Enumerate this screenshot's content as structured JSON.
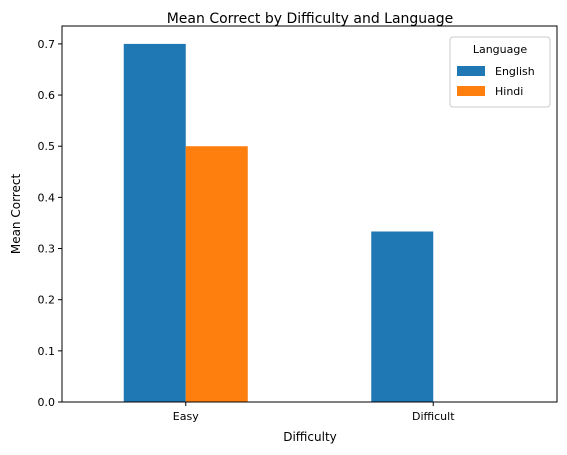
{
  "chart_data": {
    "type": "bar",
    "title": "Mean Correct by Difficulty and Language",
    "xlabel": "Difficulty",
    "ylabel": "Mean Correct",
    "categories": [
      "Easy",
      "Difficult"
    ],
    "series": [
      {
        "name": "English",
        "values": [
          0.7,
          0.3333
        ],
        "color": "#1f77b4"
      },
      {
        "name": "Hindi",
        "values": [
          0.5,
          0
        ],
        "color": "#ff7f0e"
      }
    ],
    "ylim": [
      0,
      0.735
    ],
    "yticks": [
      "0.0",
      "0.1",
      "0.2",
      "0.3",
      "0.4",
      "0.5",
      "0.6",
      "0.7"
    ],
    "grid": false,
    "legend": {
      "title": "Language",
      "placement": "top-right"
    }
  }
}
